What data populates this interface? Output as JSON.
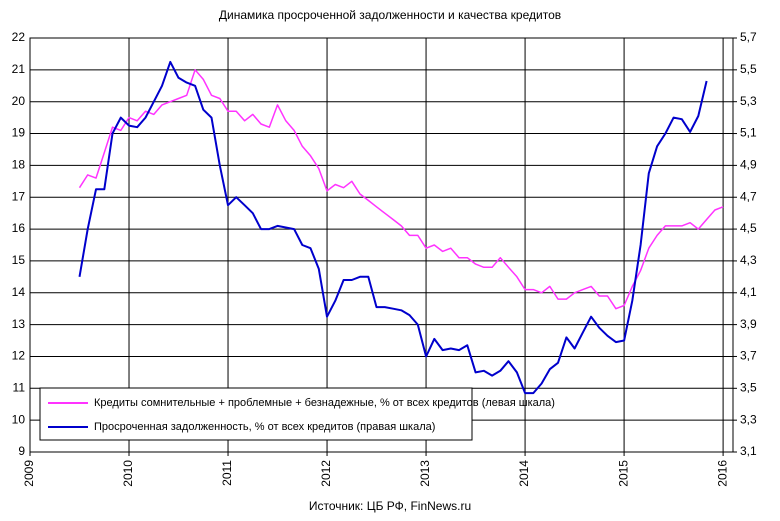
{
  "chart_data": {
    "type": "line",
    "title": "Динамика  просроченной  задолженности  и качества  кредитов",
    "source": "Источник:  ЦБ РФ, FinNews.ru",
    "x": [
      2009.5,
      2009.583,
      2009.667,
      2009.75,
      2009.833,
      2009.917,
      2010,
      2010.083,
      2010.167,
      2010.25,
      2010.333,
      2010.417,
      2010.5,
      2010.583,
      2010.667,
      2010.75,
      2010.833,
      2010.917,
      2011,
      2011.083,
      2011.167,
      2011.25,
      2011.333,
      2011.417,
      2011.5,
      2011.583,
      2011.667,
      2011.75,
      2011.833,
      2011.917,
      2012,
      2012.083,
      2012.167,
      2012.25,
      2012.333,
      2012.417,
      2012.5,
      2012.583,
      2012.667,
      2012.75,
      2012.833,
      2012.917,
      2013,
      2013.083,
      2013.167,
      2013.25,
      2013.333,
      2013.417,
      2013.5,
      2013.583,
      2013.667,
      2013.75,
      2013.833,
      2013.917,
      2014,
      2014.083,
      2014.167,
      2014.25,
      2014.333,
      2014.417,
      2014.5,
      2014.583,
      2014.667,
      2014.75,
      2014.833,
      2014.917,
      2015,
      2015.083,
      2015.167,
      2015.25,
      2015.333,
      2015.417,
      2015.5,
      2015.583,
      2015.667,
      2015.75,
      2015.833,
      2015.917,
      2016
    ],
    "series": [
      {
        "name": "Кредиты сомнительные + проблемные + безнадежные, % от всех кредитов (левая шкала)",
        "color": "#ff33ff",
        "values": [
          17.3,
          17.7,
          17.6,
          18.4,
          19.2,
          19.1,
          19.5,
          19.4,
          19.7,
          19.6,
          19.9,
          20.0,
          20.1,
          20.2,
          21.0,
          20.7,
          20.2,
          20.1,
          19.7,
          19.7,
          19.4,
          19.6,
          19.3,
          19.2,
          19.9,
          19.4,
          19.1,
          18.6,
          18.3,
          17.9,
          17.2,
          17.4,
          17.3,
          17.5,
          17.1,
          16.9,
          16.7,
          16.5,
          16.3,
          16.1,
          15.8,
          15.8,
          15.4,
          15.5,
          15.3,
          15.4,
          15.1,
          15.1,
          14.9,
          14.8,
          14.8,
          15.1,
          14.8,
          14.5,
          14.1,
          14.1,
          14.0,
          14.2,
          13.8,
          13.8,
          14.0,
          14.1,
          14.2,
          13.9,
          13.9,
          13.5,
          13.6,
          14.2,
          14.7,
          15.4,
          15.8,
          16.1,
          16.1,
          16.1,
          16.2,
          16.0,
          16.3,
          16.6,
          16.7
        ]
      },
      {
        "name": "Просроченная задолженность, % от всех кредитов (правая шкала)",
        "color": "#0000cc",
        "axis": "y2",
        "values": [
          4.2,
          4.5,
          4.75,
          4.75,
          5.1,
          5.2,
          5.15,
          5.14,
          5.2,
          5.3,
          5.4,
          5.55,
          5.45,
          5.42,
          5.4,
          5.25,
          5.2,
          4.9,
          4.65,
          4.7,
          4.65,
          4.6,
          4.5,
          4.5,
          4.52,
          4.51,
          4.5,
          4.4,
          4.38,
          4.25,
          3.95,
          4.05,
          4.18,
          4.18,
          4.2,
          4.2,
          4.01,
          4.01,
          4.0,
          3.99,
          3.96,
          3.9,
          3.7,
          3.81,
          3.74,
          3.75,
          3.74,
          3.77,
          3.6,
          3.61,
          3.58,
          3.61,
          3.67,
          3.6,
          3.47,
          3.47,
          3.53,
          3.62,
          3.66,
          3.82,
          3.75,
          3.85,
          3.95,
          3.88,
          3.83,
          3.79,
          3.8,
          4.05,
          4.4,
          4.85,
          5.02,
          5.1,
          5.2,
          5.19,
          5.11,
          5.21,
          5.43,
          null,
          null
        ]
      }
    ],
    "xlim": [
      2009,
      2016.1
    ],
    "xticks": [
      2009,
      2010,
      2011,
      2012,
      2013,
      2014,
      2015,
      2016
    ],
    "ylim": [
      9,
      22
    ],
    "yticks": [
      9,
      10,
      11,
      12,
      13,
      14,
      15,
      16,
      17,
      18,
      19,
      20,
      21,
      22
    ],
    "y2lim": [
      3.1,
      5.7
    ],
    "y2ticks": [
      {
        "value": 3.1,
        "label": "3,1"
      },
      {
        "value": 3.3,
        "label": "3,3"
      },
      {
        "value": 3.5,
        "label": "3,5"
      },
      {
        "value": 3.7,
        "label": "3,7"
      },
      {
        "value": 3.9,
        "label": "3,9"
      },
      {
        "value": 4.1,
        "label": "4,1"
      },
      {
        "value": 4.3,
        "label": "4,3"
      },
      {
        "value": 4.5,
        "label": "4,5"
      },
      {
        "value": 4.7,
        "label": "4,7"
      },
      {
        "value": 4.9,
        "label": "4,9"
      },
      {
        "value": 5.1,
        "label": "5,1"
      },
      {
        "value": 5.3,
        "label": "5,3"
      },
      {
        "value": 5.5,
        "label": "5,5"
      },
      {
        "value": 5.7,
        "label": "5,7"
      }
    ],
    "grid": true,
    "legend": "lower left"
  }
}
